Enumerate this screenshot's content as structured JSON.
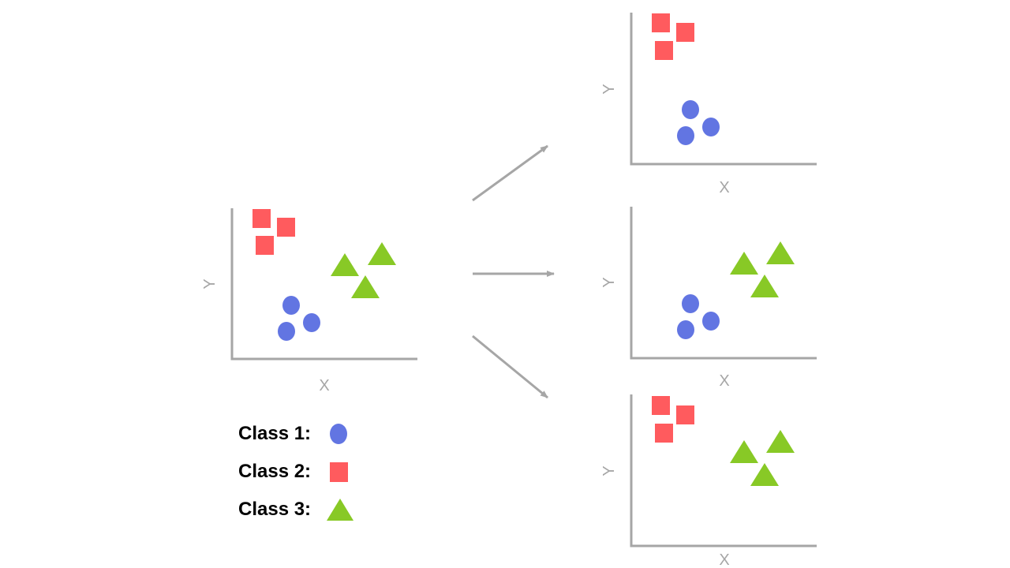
{
  "colors": {
    "class1": "#6275e2",
    "class2": "#ff5b5e",
    "class3": "#88c926",
    "axis": "#a6a6a6",
    "arrow": "#a6a6a6"
  },
  "axes": {
    "x_label": "X",
    "y_label": "Y"
  },
  "panels": [
    {
      "id": "input",
      "classes_shown": [
        "Class 1",
        "Class 2",
        "Class 3"
      ]
    },
    {
      "id": "output-top",
      "classes_shown": [
        "Class 1",
        "Class 2"
      ]
    },
    {
      "id": "output-middle",
      "classes_shown": [
        "Class 1",
        "Class 3"
      ]
    },
    {
      "id": "output-bottom",
      "classes_shown": [
        "Class 2",
        "Class 3"
      ]
    }
  ],
  "legend": {
    "items": [
      {
        "label": "Class 1:",
        "shape": "circle"
      },
      {
        "label": "Class 2:",
        "shape": "square"
      },
      {
        "label": "Class 3:",
        "shape": "triangle"
      }
    ]
  }
}
